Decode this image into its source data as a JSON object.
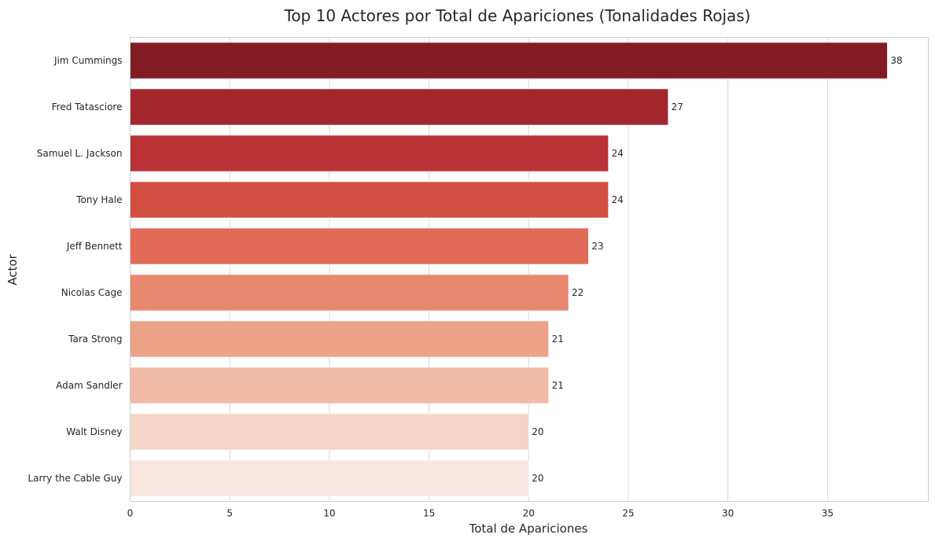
{
  "chart_data": {
    "type": "bar",
    "orientation": "horizontal",
    "title": "Top 10 Actores por Total de Apariciones (Tonalidades Rojas)",
    "xlabel": "Total de Apariciones",
    "ylabel": "Actor",
    "xlim": [
      0,
      40
    ],
    "xticks": [
      0,
      5,
      10,
      15,
      20,
      25,
      30,
      35
    ],
    "grid": true,
    "categories": [
      "Jim Cummings",
      "Fred Tatasciore",
      "Samuel L. Jackson",
      "Tony Hale",
      "Jeff Bennett",
      "Nicolas Cage",
      "Tara Strong",
      "Adam Sandler",
      "Walt Disney",
      "Larry the Cable Guy"
    ],
    "values": [
      38,
      27,
      24,
      24,
      23,
      22,
      21,
      21,
      20,
      20
    ],
    "colors": [
      "#831b23",
      "#a3262c",
      "#bb3236",
      "#d34e42",
      "#e26b57",
      "#e98870",
      "#eda28a",
      "#f1bba8",
      "#f5d5c7",
      "#f9e8e1"
    ]
  }
}
